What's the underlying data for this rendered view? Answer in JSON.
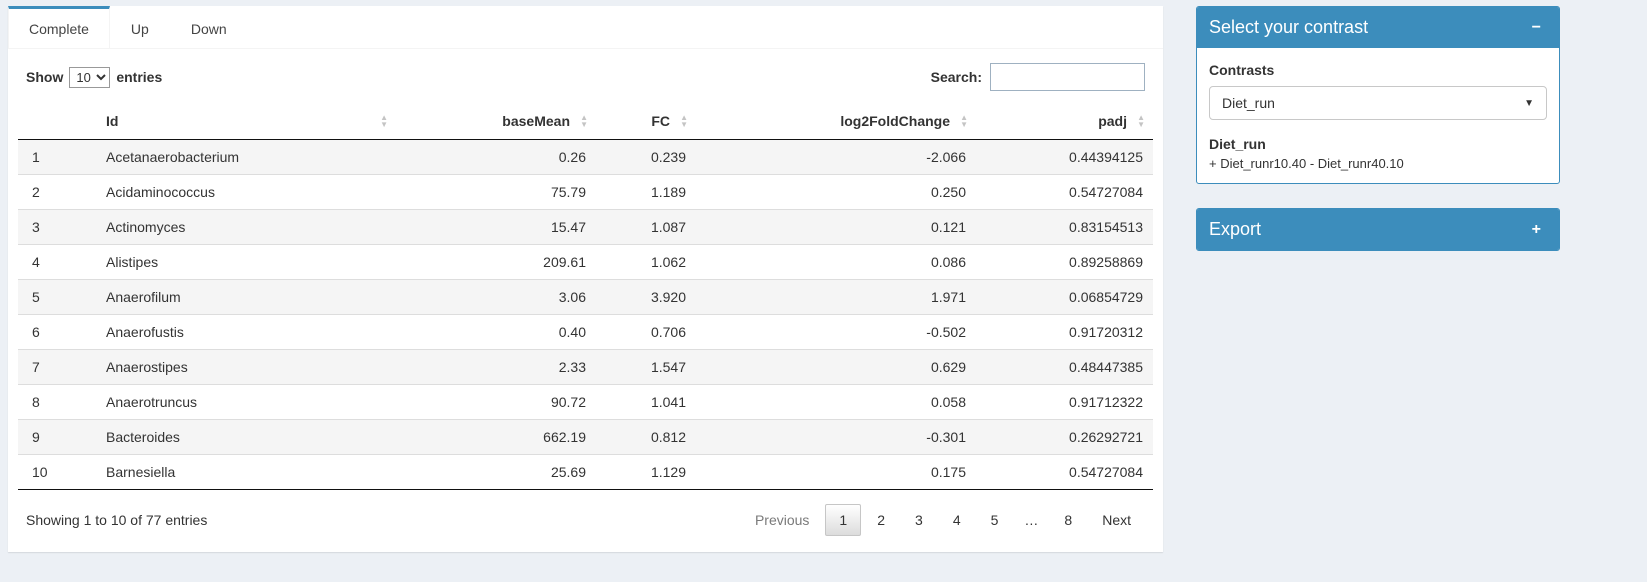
{
  "tabs": {
    "items": [
      {
        "label": "Complete",
        "state": "active"
      },
      {
        "label": "Up",
        "state": "normal"
      },
      {
        "label": "Down",
        "state": "normal"
      }
    ]
  },
  "controls": {
    "show_label": "Show",
    "selected_entries": "10",
    "entries_label": "entries",
    "search_label": "Search:",
    "search_value": ""
  },
  "table": {
    "columns": [
      "Id",
      "baseMean",
      "FC",
      "log2FoldChange",
      "padj"
    ],
    "rows": [
      {
        "n": "1",
        "id": "Acetanaerobacterium",
        "basemean": "0.26",
        "fc": "0.239",
        "log2fc": "-2.066",
        "padj": "0.44394125"
      },
      {
        "n": "2",
        "id": "Acidaminococcus",
        "basemean": "75.79",
        "fc": "1.189",
        "log2fc": "0.250",
        "padj": "0.54727084"
      },
      {
        "n": "3",
        "id": "Actinomyces",
        "basemean": "15.47",
        "fc": "1.087",
        "log2fc": "0.121",
        "padj": "0.83154513"
      },
      {
        "n": "4",
        "id": "Alistipes",
        "basemean": "209.61",
        "fc": "1.062",
        "log2fc": "0.086",
        "padj": "0.89258869"
      },
      {
        "n": "5",
        "id": "Anaerofilum",
        "basemean": "3.06",
        "fc": "3.920",
        "log2fc": "1.971",
        "padj": "0.06854729"
      },
      {
        "n": "6",
        "id": "Anaerofustis",
        "basemean": "0.40",
        "fc": "0.706",
        "log2fc": "-0.502",
        "padj": "0.91720312"
      },
      {
        "n": "7",
        "id": "Anaerostipes",
        "basemean": "2.33",
        "fc": "1.547",
        "log2fc": "0.629",
        "padj": "0.48447385"
      },
      {
        "n": "8",
        "id": "Anaerotruncus",
        "basemean": "90.72",
        "fc": "1.041",
        "log2fc": "0.058",
        "padj": "0.91712322"
      },
      {
        "n": "9",
        "id": "Bacteroides",
        "basemean": "662.19",
        "fc": "0.812",
        "log2fc": "-0.301",
        "padj": "0.26292721"
      },
      {
        "n": "10",
        "id": "Barnesiella",
        "basemean": "25.69",
        "fc": "1.129",
        "log2fc": "0.175",
        "padj": "0.54727084"
      }
    ]
  },
  "footer": {
    "info": "Showing 1 to 10 of 77 entries",
    "pagination": [
      {
        "label": "Previous",
        "state": "disabled"
      },
      {
        "label": "1",
        "state": "active"
      },
      {
        "label": "2",
        "state": "normal"
      },
      {
        "label": "3",
        "state": "normal"
      },
      {
        "label": "4",
        "state": "normal"
      },
      {
        "label": "5",
        "state": "normal"
      },
      {
        "label": "…",
        "state": "ellipsis"
      },
      {
        "label": "8",
        "state": "normal"
      },
      {
        "label": "Next",
        "state": "normal"
      }
    ]
  },
  "contrast_panel": {
    "title": "Select your contrast",
    "collapse_icon": "−",
    "contrasts_label": "Contrasts",
    "selected_contrast": "Diet_run",
    "caret_icon": "▼",
    "detail_name": "Diet_run",
    "detail_formula": "+ Diet_runr10.40 - Diet_runr40.10"
  },
  "export_panel": {
    "title": "Export",
    "collapse_icon": "+"
  },
  "colors": {
    "primary": "#3c8dbc",
    "background": "#ecf0f5"
  }
}
